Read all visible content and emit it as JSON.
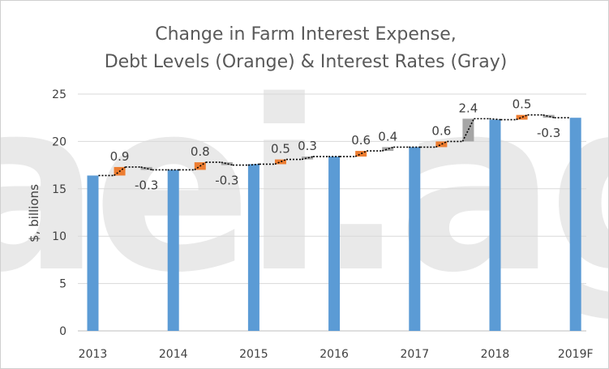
{
  "chart_data": {
    "type": "bar",
    "title_lines": [
      "Change in Farm Interest Expense,",
      "Debt Levels (Orange) & Interest Rates (Gray)"
    ],
    "xlabel": "",
    "ylabel": "$, billions",
    "ylim": [
      0,
      25
    ],
    "yticks": [
      0,
      5,
      10,
      15,
      20,
      25
    ],
    "grid": true,
    "legend": "none",
    "watermark": "aei.ag",
    "colors": {
      "total": "#5b9bd5",
      "debt": "#ed7d31",
      "rate": "#a5a5a5",
      "connector": "#000000"
    },
    "categories": [
      "2013",
      "2014",
      "2015",
      "2016",
      "2017",
      "2018",
      "2019F"
    ],
    "totals": [
      16.4,
      17.0,
      17.6,
      18.4,
      19.4,
      22.3,
      22.5
    ],
    "steps": [
      {
        "debt": 0.9,
        "rate": -0.3
      },
      {
        "debt": 0.8,
        "rate": -0.3
      },
      {
        "debt": 0.5,
        "rate": 0.3
      },
      {
        "debt": 0.6,
        "rate": 0.4
      },
      {
        "debt": 0.6,
        "rate": 2.4
      },
      {
        "debt": 0.5,
        "rate": -0.3
      }
    ],
    "step_labels": [
      {
        "debt": "0.9",
        "rate": "-0.3"
      },
      {
        "debt": "0.8",
        "rate": "-0.3"
      },
      {
        "debt": "0.5",
        "rate": "0.3"
      },
      {
        "debt": "0.6",
        "rate": "0.4"
      },
      {
        "debt": "0.6",
        "rate": "2.4"
      },
      {
        "debt": "0.5",
        "rate": "-0.3"
      }
    ]
  }
}
